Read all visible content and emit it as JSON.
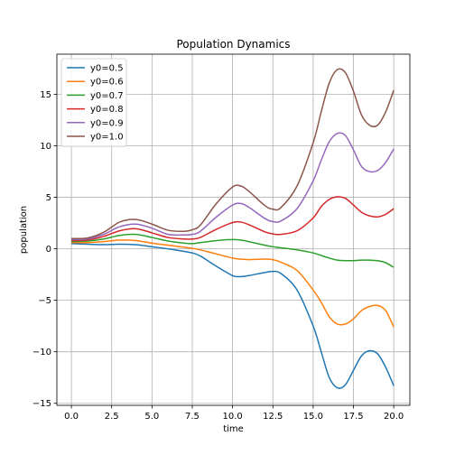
{
  "chart_data": {
    "type": "line",
    "title": "Population Dynamics",
    "xlabel": "time",
    "ylabel": "population",
    "xlim": [
      -0.9,
      21.0
    ],
    "ylim": [
      -15.2,
      18.9
    ],
    "xticks": [
      0.0,
      2.5,
      5.0,
      7.5,
      10.0,
      12.5,
      15.0,
      17.5,
      20.0
    ],
    "xtick_labels": [
      "0.0",
      "2.5",
      "5.0",
      "7.5",
      "10.0",
      "12.5",
      "15.0",
      "17.5",
      "20.0"
    ],
    "yticks": [
      -15,
      -10,
      -5,
      0,
      5,
      10,
      15
    ],
    "ytick_labels": [
      "−15",
      "−10",
      "−5",
      "0",
      "5",
      "10",
      "15"
    ],
    "grid": true,
    "legend_position": "top-left",
    "x": [
      0,
      1,
      2,
      3,
      4,
      5,
      6,
      7,
      7.5,
      8,
      9,
      10,
      10.5,
      11,
      12,
      12.5,
      13,
      14,
      15,
      15.5,
      16,
      16.5,
      17,
      17.5,
      18,
      18.5,
      19,
      19.5,
      20
    ],
    "series": [
      {
        "name": "y0=0.5",
        "color": "#1f77b4",
        "values": [
          0.5,
          0.45,
          0.4,
          0.45,
          0.4,
          0.2,
          0.0,
          -0.25,
          -0.4,
          -0.7,
          -1.7,
          -2.6,
          -2.7,
          -2.6,
          -2.3,
          -2.2,
          -2.4,
          -4.0,
          -7.5,
          -10.0,
          -12.5,
          -13.5,
          -13.2,
          -11.8,
          -10.4,
          -9.9,
          -10.2,
          -11.5,
          -13.3
        ]
      },
      {
        "name": "y0=0.6",
        "color": "#ff7f0e",
        "values": [
          0.6,
          0.6,
          0.7,
          0.85,
          0.8,
          0.55,
          0.35,
          0.15,
          0.05,
          -0.1,
          -0.5,
          -0.9,
          -1.0,
          -1.05,
          -1.0,
          -1.05,
          -1.3,
          -2.1,
          -4.0,
          -5.2,
          -6.6,
          -7.3,
          -7.3,
          -6.8,
          -6.0,
          -5.6,
          -5.5,
          -6.0,
          -7.6
        ]
      },
      {
        "name": "y0=0.7",
        "color": "#2ca02c",
        "values": [
          0.7,
          0.75,
          0.95,
          1.3,
          1.4,
          1.1,
          0.75,
          0.55,
          0.5,
          0.6,
          0.8,
          0.9,
          0.85,
          0.7,
          0.35,
          0.2,
          0.1,
          -0.1,
          -0.4,
          -0.65,
          -0.9,
          -1.1,
          -1.15,
          -1.15,
          -1.1,
          -1.1,
          -1.15,
          -1.35,
          -1.8
        ]
      },
      {
        "name": "y0=0.8",
        "color": "#d62728",
        "values": [
          0.8,
          0.85,
          1.2,
          1.75,
          1.95,
          1.55,
          1.1,
          0.95,
          0.95,
          1.1,
          1.9,
          2.55,
          2.6,
          2.35,
          1.65,
          1.45,
          1.4,
          1.75,
          3.0,
          4.1,
          4.8,
          5.05,
          4.9,
          4.25,
          3.55,
          3.2,
          3.1,
          3.35,
          3.9
        ]
      },
      {
        "name": "y0=0.9",
        "color": "#9467bd",
        "values": [
          0.9,
          0.95,
          1.4,
          2.15,
          2.4,
          2.0,
          1.4,
          1.35,
          1.4,
          1.7,
          3.1,
          4.25,
          4.4,
          4.05,
          2.95,
          2.65,
          2.7,
          3.9,
          6.6,
          8.6,
          10.4,
          11.2,
          11.0,
          9.6,
          8.0,
          7.5,
          7.6,
          8.4,
          9.7
        ]
      },
      {
        "name": "y0=1.0",
        "color": "#8c564b",
        "values": [
          1.0,
          1.05,
          1.6,
          2.6,
          2.85,
          2.4,
          1.8,
          1.7,
          1.85,
          2.3,
          4.4,
          6.0,
          6.1,
          5.6,
          4.2,
          3.85,
          4.0,
          6.1,
          10.3,
          13.3,
          16.1,
          17.4,
          17.1,
          15.3,
          13.0,
          12.0,
          12.0,
          13.3,
          15.4
        ]
      }
    ]
  }
}
